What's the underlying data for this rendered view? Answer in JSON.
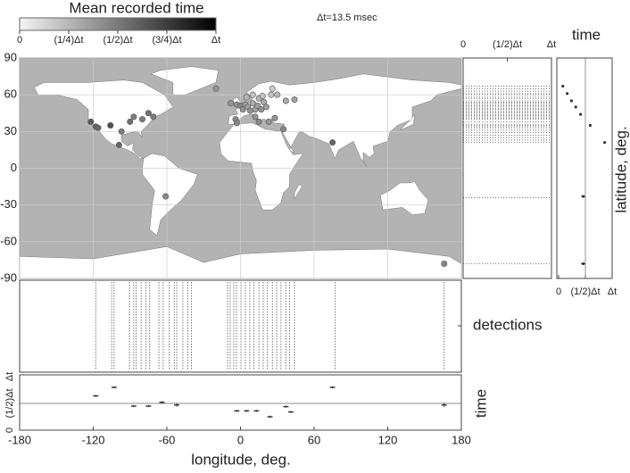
{
  "chart_data": [
    {
      "type": "colorbar",
      "title": "Mean recorded time",
      "annotation": "Δt=13.5 msec",
      "clim": [
        0,
        1
      ],
      "ticks": [
        0,
        {
          "value": 0.25,
          "label": "(1/4)Δt"
        },
        {
          "value": 0.5,
          "label": "(1/2)Δt"
        },
        {
          "value": 0.75,
          "label": "(3/4)Δt"
        },
        {
          "value": 1,
          "label": "Δt"
        }
      ]
    },
    {
      "type": "map-scatter",
      "xlim": [
        -180,
        180
      ],
      "ylim": [
        -90,
        90
      ],
      "yticks": [
        90,
        60,
        30,
        0,
        -30,
        -60,
        -90
      ],
      "x": [
        -122,
        -118,
        -116,
        -106,
        -90,
        -87,
        -80,
        -75,
        -71,
        -97,
        -99,
        -61,
        -20,
        -8,
        -3,
        0,
        2,
        4,
        6,
        8,
        10,
        12,
        14,
        17,
        19,
        21,
        25,
        30,
        10,
        5,
        15,
        18,
        -4,
        -3,
        12,
        15,
        23,
        28,
        35,
        37,
        44,
        26,
        75,
        166
      ],
      "y": [
        38,
        34,
        33,
        35,
        38,
        42,
        40,
        45,
        42,
        30,
        19,
        -23,
        65,
        53,
        52,
        51,
        48,
        52,
        50,
        47,
        53,
        48,
        51,
        48,
        54,
        50,
        60,
        60,
        60,
        58,
        57,
        59,
        40,
        37,
        42,
        38,
        38,
        41,
        32,
        55,
        56,
        65,
        21,
        -78
      ],
      "values": [
        0.65,
        0.62,
        0.6,
        0.7,
        0.55,
        0.5,
        0.5,
        0.55,
        0.5,
        0.5,
        0.6,
        0.45,
        0.4,
        0.4,
        0.4,
        0.45,
        0.4,
        0.35,
        0.35,
        0.4,
        0.3,
        0.35,
        0.35,
        0.4,
        0.3,
        0.35,
        0.2,
        0.25,
        0.2,
        0.25,
        0.25,
        0.2,
        0.45,
        0.45,
        0.4,
        0.45,
        0.4,
        0.4,
        0.45,
        0.3,
        0.35,
        0.15,
        0.6,
        0.46
      ]
    },
    {
      "type": "hlines",
      "xlim": [
        0,
        1
      ],
      "ylim": [
        -90,
        90
      ],
      "xticks": [
        0,
        {
          "value": 0.5,
          "label": "(1/2)Δt"
        },
        {
          "value": 1,
          "label": "Δt"
        }
      ],
      "y": [
        67,
        65,
        63,
        61,
        60,
        58,
        57,
        55,
        54,
        53,
        52,
        51,
        50,
        49,
        48,
        47,
        46,
        45,
        44,
        43,
        42,
        41,
        40,
        38,
        36,
        35,
        34,
        33,
        31,
        29,
        27,
        25,
        23,
        21,
        -24,
        -78
      ]
    },
    {
      "type": "errorbar-h",
      "xlabel": "time",
      "ylabel": "latitude, deg.",
      "xlim": [
        0,
        1
      ],
      "ylim": [
        -90,
        90
      ],
      "xticks": [
        0,
        {
          "value": 0.5,
          "label": "(1/2)Δt"
        },
        {
          "value": 1,
          "label": "Δt"
        }
      ],
      "y": [
        67,
        61,
        55,
        50,
        44,
        35,
        21,
        -23,
        -78
      ],
      "values": [
        0.08,
        0.16,
        0.24,
        0.32,
        0.41,
        0.59,
        0.86,
        0.46,
        0.46
      ],
      "errors": [
        0.02,
        0.02,
        0.02,
        0.02,
        0.02,
        0.02,
        0.02,
        0.04,
        0.04
      ]
    },
    {
      "type": "vlines",
      "ylabel": "detections",
      "xlim": [
        -180,
        180
      ],
      "x": [
        -118,
        -105,
        -103,
        -90.5,
        -87,
        -85,
        -81,
        -77,
        -74,
        -66.5,
        -63,
        -58,
        -54,
        -52,
        -47,
        -43,
        -40,
        -10.5,
        -8.4,
        -5.5,
        -3.3,
        0.4,
        4,
        7.6,
        11,
        15,
        18.5,
        22,
        26,
        29.5,
        33,
        37,
        40,
        44,
        77,
        166
      ]
    },
    {
      "type": "errorbar-v",
      "ylabel": "time",
      "xlabel": "longitude, deg.",
      "xlim": [
        -180,
        180
      ],
      "ylim": [
        0,
        1
      ],
      "xticks": [
        -180,
        -120,
        -60,
        0,
        60,
        120,
        180
      ],
      "yticks": [
        0,
        {
          "value": 0.5,
          "label": "(1/2)Δt"
        },
        {
          "value": 1,
          "label": "Δt"
        }
      ],
      "x": [
        -118,
        -103,
        -87,
        -75,
        -64,
        -52,
        -3,
        5,
        13,
        24,
        37,
        41,
        75,
        166
      ],
      "values": [
        0.64,
        0.8,
        0.45,
        0.45,
        0.52,
        0.47,
        0.36,
        0.36,
        0.36,
        0.25,
        0.44,
        0.34,
        0.8,
        0.47
      ],
      "errors": [
        0.02,
        0.02,
        0.02,
        0.02,
        0.02,
        0.03,
        0.02,
        0.02,
        0.02,
        0.02,
        0.02,
        0.02,
        0.02,
        0.04
      ]
    }
  ]
}
